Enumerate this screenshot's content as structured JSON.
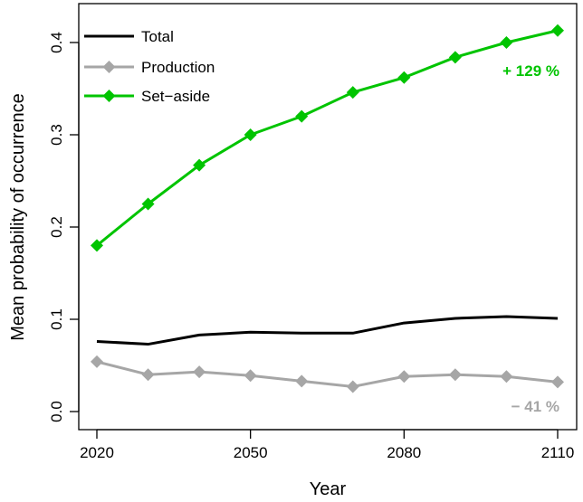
{
  "chart_data": {
    "type": "line",
    "title": "",
    "xlabel": "Year",
    "ylabel": "Mean probability of occurrence",
    "x": [
      2020,
      2030,
      2040,
      2050,
      2060,
      2070,
      2080,
      2090,
      2100,
      2110
    ],
    "xlim": [
      2020,
      2110
    ],
    "ylim": [
      0.0,
      0.42
    ],
    "x_ticks": [
      2020,
      2050,
      2080,
      2110
    ],
    "y_ticks": [
      0.0,
      0.1,
      0.2,
      0.3,
      0.4
    ],
    "x_tick_labels": [
      "2020",
      "2050",
      "2080",
      "2110"
    ],
    "y_tick_labels": [
      "0.0",
      "0.1",
      "0.2",
      "0.3",
      "0.4"
    ],
    "grid": false,
    "legend_placement": "top-left",
    "series": [
      {
        "name": "Total",
        "color": "#000000",
        "marker": "none",
        "values": [
          0.076,
          0.073,
          0.083,
          0.086,
          0.085,
          0.085,
          0.096,
          0.101,
          0.103,
          0.101
        ]
      },
      {
        "name": "Production",
        "color": "#a6a6a6",
        "marker": "diamond",
        "values": [
          0.054,
          0.04,
          0.043,
          0.039,
          0.033,
          0.027,
          0.038,
          0.04,
          0.038,
          0.032
        ]
      },
      {
        "name": "Set−aside",
        "color": "#00c400",
        "marker": "diamond",
        "values": [
          0.18,
          0.225,
          0.267,
          0.3,
          0.32,
          0.346,
          0.362,
          0.384,
          0.4,
          0.413
        ]
      }
    ],
    "annotations": [
      {
        "text": "+ 129 %",
        "color": "#00c400",
        "series": "Set−aside"
      },
      {
        "text": "− 41 %",
        "color": "#a6a6a6",
        "series": "Production"
      }
    ]
  }
}
